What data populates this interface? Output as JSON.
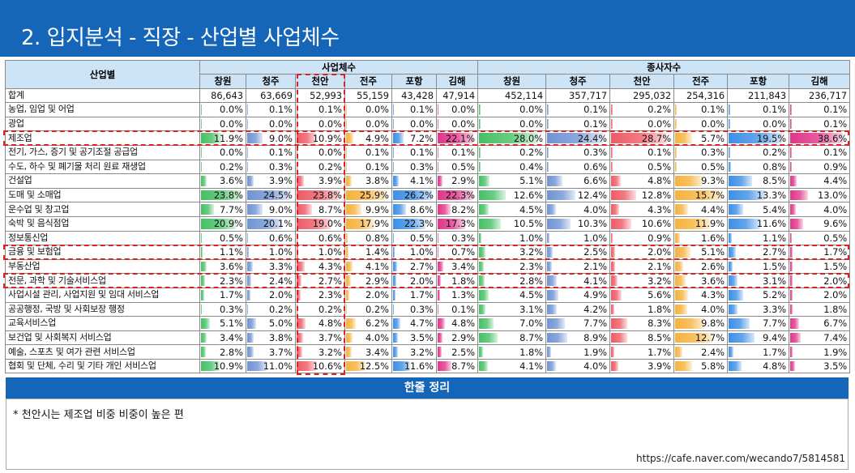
{
  "title": "2. 입지분석 - 직장 - 산업별 사업체수",
  "table": {
    "row_header": "산업별",
    "group_establishments": "사업체수",
    "group_workers": "종사자수",
    "cities": [
      "창원",
      "청주",
      "천안",
      "전주",
      "포항",
      "김해"
    ],
    "rows": [
      {
        "label": "합계",
        "total": true,
        "est": [
          "86,643",
          "63,669",
          "52,993",
          "55,159",
          "43,428",
          "47,914"
        ],
        "wrk": [
          "452,114",
          "357,717",
          "295,032",
          "254,316",
          "211,843",
          "236,717"
        ]
      },
      {
        "label": "농업, 임업 및 어업",
        "est": [
          "0.0%",
          "0.1%",
          "0.1%",
          "0.0%",
          "0.1%",
          "0.0%"
        ],
        "wrk": [
          "0.0%",
          "0.1%",
          "0.2%",
          "0.1%",
          "0.1%",
          "0.1%"
        ]
      },
      {
        "label": "광업",
        "est": [
          "0.0%",
          "0.0%",
          "0.0%",
          "0.0%",
          "0.0%",
          "0.0%"
        ],
        "wrk": [
          "0.0%",
          "0.1%",
          "0.0%",
          "0.0%",
          "0.0%",
          "0.1%"
        ]
      },
      {
        "label": "제조업",
        "est": [
          "11.9%",
          "9.0%",
          "10.9%",
          "4.9%",
          "7.2%",
          "22.1%"
        ],
        "wrk": [
          "28.0%",
          "24.4%",
          "28.7%",
          "5.7%",
          "19.5%",
          "38.6%"
        ]
      },
      {
        "label": "전기, 가스, 증기 및 공기조절 공급업",
        "est": [
          "0.0%",
          "0.1%",
          "0.0%",
          "0.1%",
          "0.1%",
          "0.1%"
        ],
        "wrk": [
          "0.2%",
          "0.3%",
          "0.1%",
          "0.3%",
          "0.2%",
          "0.1%"
        ]
      },
      {
        "label": "수도, 하수 및 폐기물 처리 원료 재생업",
        "est": [
          "0.2%",
          "0.3%",
          "0.2%",
          "0.1%",
          "0.3%",
          "0.5%"
        ],
        "wrk": [
          "0.4%",
          "0.6%",
          "0.5%",
          "0.5%",
          "0.8%",
          "0.9%"
        ]
      },
      {
        "label": "건설업",
        "est": [
          "3.6%",
          "3.9%",
          "3.9%",
          "3.8%",
          "4.1%",
          "2.9%"
        ],
        "wrk": [
          "5.1%",
          "6.6%",
          "4.8%",
          "9.3%",
          "8.5%",
          "4.4%"
        ]
      },
      {
        "label": "도매 및 소매업",
        "est": [
          "23.8%",
          "24.5%",
          "23.8%",
          "25.9%",
          "26.2%",
          "22.3%"
        ],
        "wrk": [
          "12.6%",
          "12.4%",
          "12.8%",
          "15.7%",
          "13.3%",
          "13.0%"
        ]
      },
      {
        "label": "운수업 및 창고업",
        "est": [
          "7.7%",
          "9.0%",
          "8.7%",
          "9.9%",
          "8.6%",
          "8.2%"
        ],
        "wrk": [
          "4.5%",
          "4.0%",
          "4.3%",
          "4.4%",
          "5.4%",
          "4.0%"
        ]
      },
      {
        "label": "숙박 및 음식점업",
        "est": [
          "20.9%",
          "20.1%",
          "19.0%",
          "17.9%",
          "22.3%",
          "17.3%"
        ],
        "wrk": [
          "10.5%",
          "10.3%",
          "10.6%",
          "11.9%",
          "11.6%",
          "9.6%"
        ]
      },
      {
        "label": "정보통신업",
        "est": [
          "0.5%",
          "0.6%",
          "0.6%",
          "0.8%",
          "0.5%",
          "0.3%"
        ],
        "wrk": [
          "1.0%",
          "1.0%",
          "0.9%",
          "1.6%",
          "1.1%",
          "0.5%"
        ]
      },
      {
        "label": "금융 및 보험업",
        "est": [
          "1.1%",
          "1.0%",
          "1.0%",
          "1.4%",
          "1.0%",
          "0.7%"
        ],
        "wrk": [
          "3.2%",
          "2.5%",
          "2.0%",
          "5.1%",
          "2.7%",
          "1.7%"
        ]
      },
      {
        "label": "부동산업",
        "est": [
          "3.6%",
          "3.3%",
          "4.3%",
          "4.1%",
          "2.7%",
          "3.4%"
        ],
        "wrk": [
          "2.3%",
          "2.1%",
          "2.1%",
          "2.6%",
          "1.5%",
          "1.5%"
        ]
      },
      {
        "label": "전문, 과학 및 기술서비스업",
        "est": [
          "2.3%",
          "2.4%",
          "2.7%",
          "2.9%",
          "2.0%",
          "1.8%"
        ],
        "wrk": [
          "2.8%",
          "4.1%",
          "3.2%",
          "3.6%",
          "3.1%",
          "2.0%"
        ]
      },
      {
        "label": "사업시설 관리, 사업지원 및 임대 서비스업",
        "est": [
          "1.7%",
          "2.0%",
          "2.3%",
          "2.0%",
          "1.7%",
          "1.3%"
        ],
        "wrk": [
          "4.5%",
          "4.9%",
          "5.6%",
          "4.3%",
          "5.2%",
          "2.0%"
        ]
      },
      {
        "label": "공공행정, 국방 및 사회보장 행정",
        "est": [
          "0.3%",
          "0.2%",
          "0.2%",
          "0.2%",
          "0.3%",
          "0.1%"
        ],
        "wrk": [
          "3.1%",
          "4.2%",
          "1.8%",
          "4.0%",
          "3.3%",
          "1.8%"
        ]
      },
      {
        "label": "교육서비스업",
        "est": [
          "5.1%",
          "5.0%",
          "4.8%",
          "6.2%",
          "4.7%",
          "4.8%"
        ],
        "wrk": [
          "7.0%",
          "7.7%",
          "8.3%",
          "9.8%",
          "7.7%",
          "6.7%"
        ]
      },
      {
        "label": "보건업 및 사회복지 서비스업",
        "est": [
          "3.4%",
          "3.8%",
          "3.7%",
          "4.0%",
          "3.5%",
          "2.9%"
        ],
        "wrk": [
          "8.7%",
          "8.9%",
          "8.5%",
          "12.7%",
          "9.4%",
          "7.4%"
        ]
      },
      {
        "label": "예술, 스포츠 및 여가 관련 서비스업",
        "est": [
          "2.8%",
          "3.7%",
          "3.2%",
          "3.4%",
          "3.2%",
          "2.5%"
        ],
        "wrk": [
          "1.8%",
          "1.9%",
          "1.7%",
          "2.4%",
          "1.7%",
          "1.9%"
        ]
      },
      {
        "label": "협회 및 단체, 수리  및 기타 개인 서비스업",
        "est": [
          "10.9%",
          "11.0%",
          "10.6%",
          "12.5%",
          "11.6%",
          "8.7%"
        ],
        "wrk": [
          "4.1%",
          "4.0%",
          "3.9%",
          "5.8%",
          "4.8%",
          "3.5%"
        ]
      }
    ]
  },
  "summary": {
    "title": "한줄 정리",
    "text": "* 천안시는 제조업 비중 비중이 높은 편"
  },
  "source_url": "https://cafe.naver.com/wecando7/5814581",
  "colors": {
    "header_blue": "#1565b8",
    "table_header_bg": "#cde4f6",
    "highlight_red": "#e02020",
    "city_bars": [
      "#45c064",
      "#6f93d4",
      "#ee5a66",
      "#f6b23c",
      "#3d8fe6",
      "#e0358a"
    ]
  }
}
